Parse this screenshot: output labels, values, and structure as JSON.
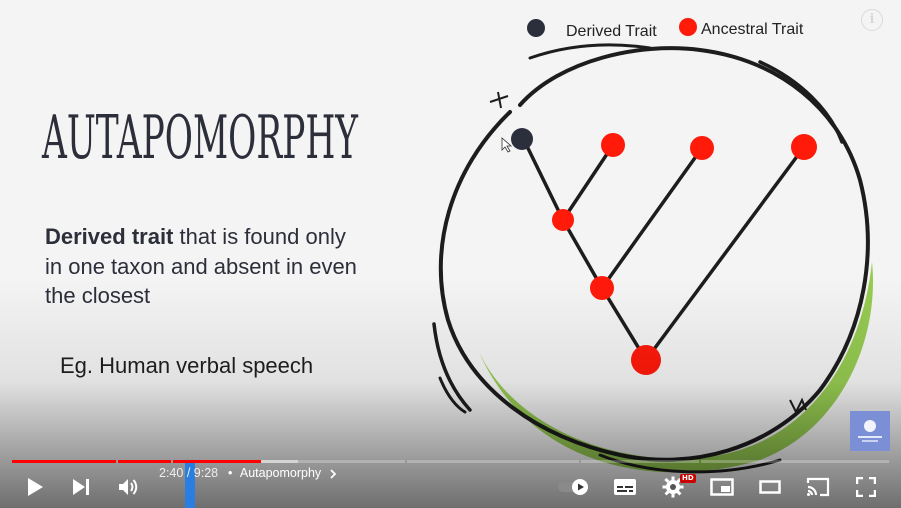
{
  "slide": {
    "title": "Autapomorphy",
    "definition_bold": "Derived trait",
    "definition_rest": " that is found only in one taxon and absent in even the closest",
    "example": "Eg. Human verbal speech",
    "legend": {
      "derived_label": "Derived Trait",
      "ancestral_label": "Ancestral Trait",
      "derived_color": "#2b2f3c",
      "ancestral_color": "#ff1a0a"
    },
    "accent_color": "#8cc63f"
  },
  "player": {
    "current_time": "2:40",
    "separator": "/",
    "duration": "9:28",
    "bullet": "•",
    "chapter_title": "Autapomorphy",
    "played_fraction": 0.282,
    "hd_badge": "HD",
    "info_glyph": "i",
    "watermark_label": "WATERMARK",
    "icons": [
      "play-icon",
      "next-icon",
      "volume-icon",
      "autoplay-toggle",
      "subtitles-icon",
      "settings-gear-icon",
      "miniplayer-icon",
      "theater-mode-icon",
      "cast-icon",
      "fullscreen-icon",
      "info-icon",
      "chevron-right-icon"
    ],
    "colors": {
      "progress": "#ff0000",
      "scrub_marker": "#2a7de1",
      "controls": "#ffffff"
    }
  }
}
